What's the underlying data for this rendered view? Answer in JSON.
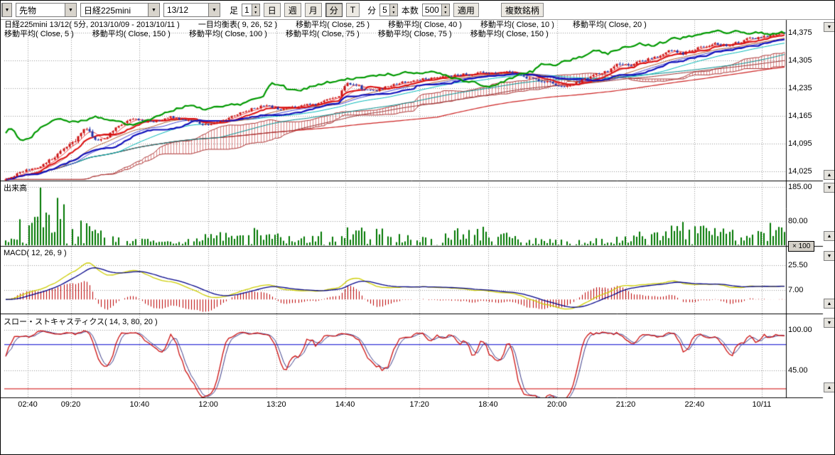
{
  "toolbar": {
    "category": "先物",
    "symbol": "日経225mini",
    "contract": "13/12",
    "bar_label": "足",
    "bar_value": "1",
    "period_day": "日",
    "period_week": "週",
    "period_month": "月",
    "period_minute": "分",
    "tick_label": "T",
    "minute_label": "分",
    "minute_value": "5",
    "count_label": "本数",
    "count_value": "500",
    "apply_label": "適用",
    "multi_symbol_label": "複数銘柄"
  },
  "legend": {
    "line1": [
      "日経225mini 13/12( 5分, 2013/10/09 - 2013/10/11 )",
      "一目均衡表( 9, 26, 52 )",
      "移動平均( Close, 25 )",
      "移動平均( Close, 40 )",
      "移動平均( Close, 10 )",
      "移動平均( Close, 20 )"
    ],
    "line2": [
      "移動平均( Close, 5 )",
      "移動平均( Close, 150 )",
      "移動平均( Close, 100 )",
      "移動平均( Close, 75 )",
      "移動平均( Close, 75 )",
      "移動平均( Close, 150 )"
    ]
  },
  "panels": {
    "volume_title": "出来高",
    "macd_title": "MACD( 12, 26, 9 )",
    "stoch_title": "スロー・ストキャスティクス( 14, 3, 80, 20 )",
    "volume_multiplier": "× 100"
  },
  "chart_data": {
    "type": "candlestick",
    "title": "日経225mini 13/12( 5分, 2013/10/09 - 2013/10/11 )",
    "n_bars": 270,
    "seed": 20131011,
    "price_axis_labels": [
      "14,375",
      "14,305",
      "14,235",
      "14,165",
      "14,095",
      "14,025"
    ],
    "price_axis_values": [
      14375,
      14305,
      14235,
      14165,
      14095,
      14025
    ],
    "volume_axis_labels": [
      "185.00",
      "80.00"
    ],
    "volume_axis_values": [
      185,
      80
    ],
    "macd_axis_labels": [
      "25.50",
      "7.00"
    ],
    "macd_axis_values": [
      25.5,
      7
    ],
    "stoch_axis_labels": [
      "100.00",
      "45.00"
    ],
    "stoch_axis_values": [
      100,
      45
    ],
    "stoch_ref_levels": [
      80,
      20
    ],
    "ma_periods": [
      5,
      10,
      20,
      25,
      40,
      75,
      100,
      150
    ],
    "ichimoku_params": [
      9,
      26,
      52
    ],
    "macd_params": [
      12,
      26,
      9
    ],
    "stoch_params": [
      14,
      3,
      80,
      20
    ],
    "time_labels": [
      {
        "label": "02:40",
        "f": 0.03
      },
      {
        "label": "09:20",
        "f": 0.085
      },
      {
        "label": "10:40",
        "f": 0.173
      },
      {
        "label": "12:00",
        "f": 0.261
      },
      {
        "label": "13:20",
        "f": 0.348
      },
      {
        "label": "14:40",
        "f": 0.436
      },
      {
        "label": "17:20",
        "f": 0.531
      },
      {
        "label": "18:40",
        "f": 0.619
      },
      {
        "label": "20:00",
        "f": 0.707
      },
      {
        "label": "21:20",
        "f": 0.795
      },
      {
        "label": "22:40",
        "f": 0.883
      },
      {
        "label": "10/11",
        "f": 0.969
      }
    ],
    "price_anchors": [
      [
        0,
        14005
      ],
      [
        0.02,
        14022
      ],
      [
        0.045,
        14040
      ],
      [
        0.065,
        14062
      ],
      [
        0.08,
        14088
      ],
      [
        0.095,
        14120
      ],
      [
        0.105,
        14128
      ],
      [
        0.115,
        14105
      ],
      [
        0.13,
        14118
      ],
      [
        0.15,
        14145
      ],
      [
        0.165,
        14158
      ],
      [
        0.19,
        14150
      ],
      [
        0.21,
        14162
      ],
      [
        0.24,
        14152
      ],
      [
        0.26,
        14142
      ],
      [
        0.285,
        14158
      ],
      [
        0.31,
        14180
      ],
      [
        0.33,
        14192
      ],
      [
        0.35,
        14183
      ],
      [
        0.375,
        14186
      ],
      [
        0.4,
        14196
      ],
      [
        0.42,
        14210
      ],
      [
        0.44,
        14242
      ],
      [
        0.455,
        14232
      ],
      [
        0.47,
        14228
      ],
      [
        0.5,
        14246
      ],
      [
        0.53,
        14258
      ],
      [
        0.56,
        14266
      ],
      [
        0.59,
        14270
      ],
      [
        0.62,
        14272
      ],
      [
        0.645,
        14278
      ],
      [
        0.665,
        14265
      ],
      [
        0.69,
        14252
      ],
      [
        0.715,
        14242
      ],
      [
        0.74,
        14255
      ],
      [
        0.765,
        14268
      ],
      [
        0.79,
        14295
      ],
      [
        0.81,
        14302
      ],
      [
        0.835,
        14315
      ],
      [
        0.855,
        14330
      ],
      [
        0.87,
        14324
      ],
      [
        0.89,
        14338
      ],
      [
        0.91,
        14348
      ],
      [
        0.93,
        14344
      ],
      [
        0.95,
        14356
      ],
      [
        0.97,
        14365
      ],
      [
        1,
        14372
      ]
    ],
    "colors": {
      "up": "#cc1111",
      "down": "#2233aa",
      "lagging_span": "#009900",
      "kijun": "#1111bb",
      "tenkan": "#dd1111",
      "cloud": "rgba(190,40,40,0.55)",
      "cloud_edge": "#aa3333",
      "ma150": "#cc2222",
      "ma100": "#993333",
      "ma75": "#008b8b",
      "ma40": "#00b7b7",
      "ma25": "#4444cc",
      "ma20": "#b06030",
      "ma10": "#cc6666",
      "ma5": "#ee4444",
      "volume": "#007700",
      "macd": "#cccc00",
      "macd_signal": "#000088",
      "macd_hist": "#bb0000",
      "stoch_k": "#cc1111",
      "stoch_d": "#3a3a88",
      "ref_high": "#0000cc",
      "ref_low": "#cc0000",
      "grid": "rgba(60,60,60,0.55)"
    }
  }
}
